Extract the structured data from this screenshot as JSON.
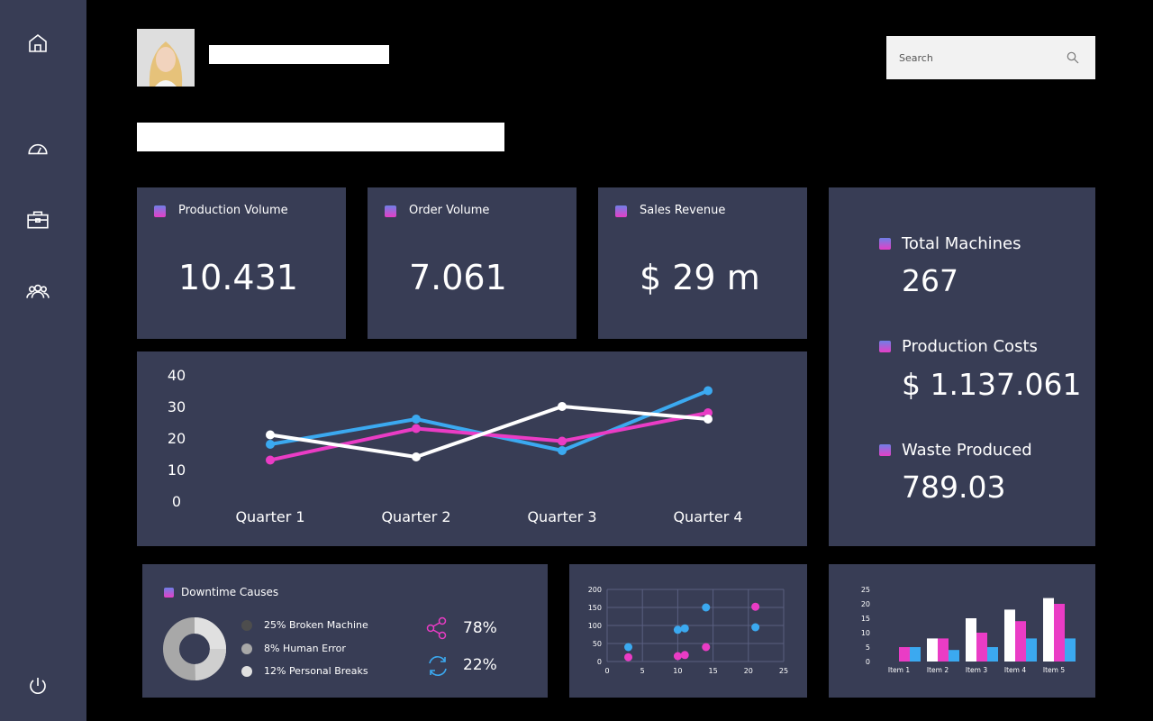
{
  "header": {
    "search_placeholder": "Search"
  },
  "kpis": [
    {
      "title": "Production Volume",
      "value": "10.431"
    },
    {
      "title": "Order Volume",
      "value": "7.061"
    },
    {
      "title": "Sales Revenue",
      "value": "$ 29 m"
    }
  ],
  "stats": [
    {
      "title": "Total Machines",
      "value": "267"
    },
    {
      "title": "Production Costs",
      "value": "$ 1.137.061"
    },
    {
      "title": "Waste Produced",
      "value": "789.03"
    }
  ],
  "downtime": {
    "title": "Downtime Causes",
    "legend": [
      "25% Broken Machine",
      "8% Human Error",
      "12% Personal Breaks"
    ],
    "legend_colors": [
      "#4d4d4d",
      "#a8a8a8",
      "#e0e0e0"
    ],
    "metrics": [
      {
        "icon": "share-icon",
        "value": "78%"
      },
      {
        "icon": "refresh-icon",
        "value": "22%"
      }
    ]
  },
  "colors": {
    "blue": "#3ba9f0",
    "pink": "#ea3cc5",
    "white": "#ffffff",
    "card": "#383d55"
  },
  "chart_data": [
    {
      "type": "line",
      "categories": [
        "Quarter 1",
        "Quarter 2",
        "Quarter 3",
        "Quarter 4"
      ],
      "ylim": [
        0,
        40
      ],
      "yticks": [
        "0",
        "10",
        "20",
        "30",
        "40"
      ],
      "series": [
        {
          "color": "#3ba9f0",
          "values": [
            18,
            26,
            16,
            35
          ]
        },
        {
          "color": "#ea3cc5",
          "values": [
            13,
            23,
            19,
            28
          ]
        },
        {
          "color": "#ffffff",
          "values": [
            21,
            14,
            30,
            26
          ]
        }
      ],
      "grid": false
    },
    {
      "type": "scatter",
      "xlim": [
        0,
        25
      ],
      "ylim": [
        0,
        200
      ],
      "xticks": [
        "0",
        "5",
        "10",
        "15",
        "20",
        "25"
      ],
      "yticks": [
        "0",
        "50",
        "100",
        "150",
        "200"
      ],
      "grid": true,
      "series": [
        {
          "color": "#3ba9f0",
          "points": [
            [
              3,
              40
            ],
            [
              10,
              88
            ],
            [
              11,
              92
            ],
            [
              14,
              150
            ],
            [
              21,
              95
            ]
          ]
        },
        {
          "color": "#ea3cc5",
          "points": [
            [
              3,
              12
            ],
            [
              10,
              15
            ],
            [
              11,
              18
            ],
            [
              14,
              40
            ],
            [
              21,
              152
            ]
          ]
        }
      ]
    },
    {
      "type": "bar",
      "categories": [
        "Item 1",
        "Item 2",
        "Item 3",
        "Item 4",
        "Item 5"
      ],
      "ylim": [
        0,
        25
      ],
      "yticks": [
        "0",
        "5",
        "10",
        "15",
        "20",
        "25"
      ],
      "series": [
        {
          "color": "#ffffff",
          "values": [
            0,
            8,
            15,
            18,
            22
          ]
        },
        {
          "color": "#ea3cc5",
          "values": [
            5,
            8,
            10,
            14,
            20
          ]
        },
        {
          "color": "#3ba9f0",
          "values": [
            5,
            4,
            5,
            8,
            8
          ]
        }
      ]
    }
  ]
}
